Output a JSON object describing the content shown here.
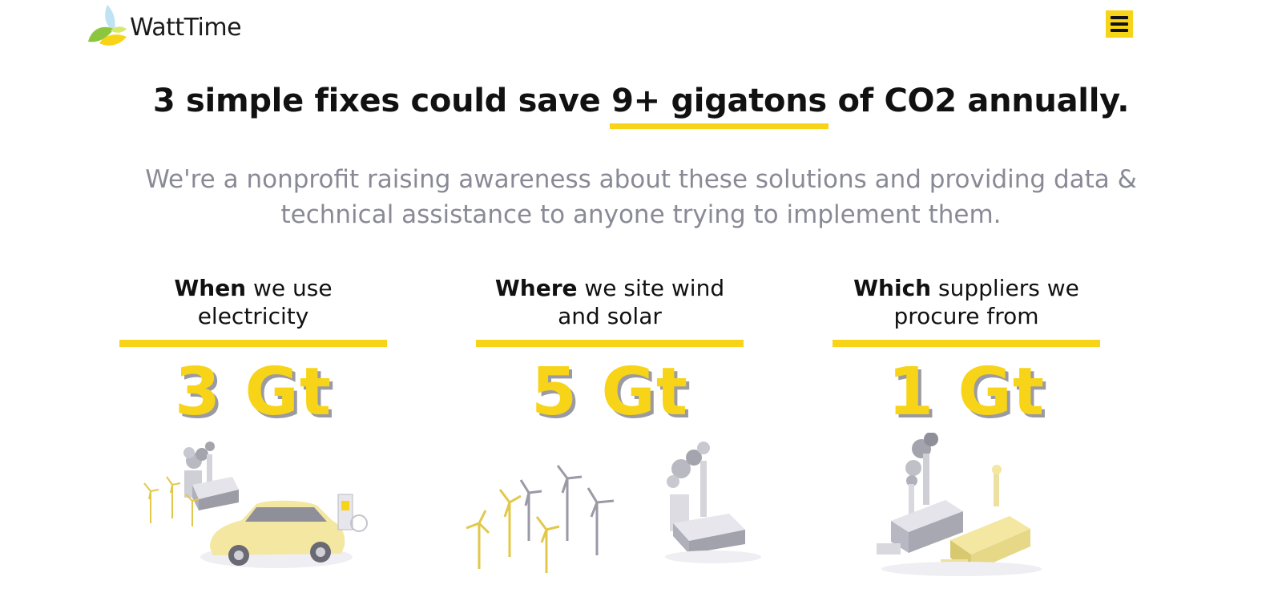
{
  "header": {
    "brand": "WattTime",
    "menu_icon": "hamburger-menu-icon"
  },
  "hero": {
    "headline_pre": "3 simple fixes could save ",
    "headline_highlight": "9+ gigatons",
    "headline_post": " of CO2 annually.",
    "subhead": "We're a nonprofit raising awareness about these solutions and providing data & technical assistance to anyone trying to implement them."
  },
  "fixes": [
    {
      "bold": "When",
      "rest": " we use electricity",
      "value": "3 Gt"
    },
    {
      "bold": "Where",
      "rest": " we site wind and solar",
      "value": "5 Gt"
    },
    {
      "bold": "Which",
      "rest": " suppliers we procure from",
      "value": "1 Gt"
    }
  ],
  "colors": {
    "accent": "#f7d417",
    "subtext": "#8a8a96",
    "shadow": "#9a9aa4"
  }
}
